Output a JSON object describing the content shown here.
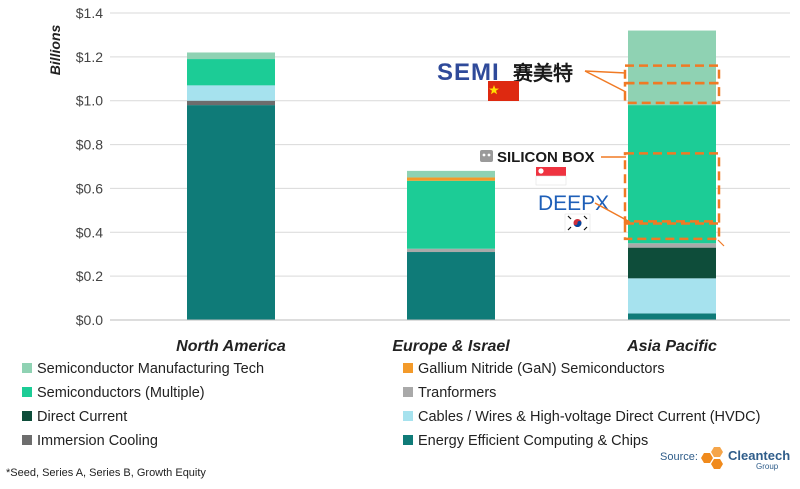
{
  "chart_data": {
    "type": "bar",
    "stacked": true,
    "ylabel": "Billions",
    "ylim": [
      0,
      1.4
    ],
    "yticks": [
      "$0.0",
      "$0.2",
      "$0.4",
      "$0.6",
      "$0.8",
      "$1.0",
      "$1.2",
      "$1.4"
    ],
    "categories": [
      "North America",
      "Europe & Israel",
      "Asia Pacific"
    ],
    "series": [
      {
        "name": "Energy Efficient Computing & Chips",
        "color": "#0f7b78",
        "values": [
          0.98,
          0.31,
          0.03
        ]
      },
      {
        "name": "Immersion Cooling",
        "color": "#6d6d6d",
        "values": [
          0.02,
          0.0,
          0.0
        ]
      },
      {
        "name": "Cables / Wires & High-voltage Direct Current (HVDC)",
        "color": "#a6e2ee",
        "values": [
          0.07,
          0.0,
          0.16
        ]
      },
      {
        "name": "Direct Current",
        "color": "#0e4d3a",
        "values": [
          0.0,
          0.0,
          0.14
        ]
      },
      {
        "name": "Tranformers",
        "color": "#a9a9a9",
        "values": [
          0.0,
          0.015,
          0.02
        ]
      },
      {
        "name": "Semiconductors (Multiple)",
        "color": "#1ccc96",
        "values": [
          0.12,
          0.31,
          0.63
        ]
      },
      {
        "name": "Gallium Nitride (GaN) Semiconductors",
        "color": "#f39a2a",
        "values": [
          0.0,
          0.015,
          0.0
        ]
      },
      {
        "name": "Semiconductor Manufacturing Tech",
        "color": "#8fd2b3",
        "values": [
          0.03,
          0.03,
          0.34
        ]
      }
    ],
    "legend": {
      "placement": "bottom",
      "order": [
        "Semiconductor Manufacturing Tech",
        "Gallium Nitride (GaN) Semiconductors",
        "Semiconductors (Multiple)",
        "Tranformers",
        "Direct Current",
        "Cables / Wires & High-voltage Direct Current (HVDC)",
        "Immersion Cooling",
        "Energy Efficient Computing & Chips"
      ]
    },
    "grid": true,
    "highlights": [
      {
        "company": "SEMI 赛美特",
        "country_flag": "China",
        "y_range": [
          1.08,
          1.16
        ]
      },
      {
        "company": "SEMI 赛美特",
        "country_flag": "China",
        "y_range": [
          0.99,
          1.08
        ]
      },
      {
        "company": "SILICON BOX",
        "country_flag": "Singapore",
        "y_range": [
          0.45,
          0.76
        ]
      },
      {
        "company": "DEEPX",
        "country_flag": "South Korea",
        "y_range": [
          0.37,
          0.44
        ]
      }
    ]
  },
  "annotations": {
    "semi": "SEMI",
    "semi_cn": "赛美特",
    "silicon_box": "SILICON BOX",
    "deepx": "DEEPX"
  },
  "footnote": "*Seed, Series A, Series B, Growth Equity",
  "source": {
    "label": "Source:",
    "brand": "Cleantech",
    "brand_sub": "Group"
  }
}
